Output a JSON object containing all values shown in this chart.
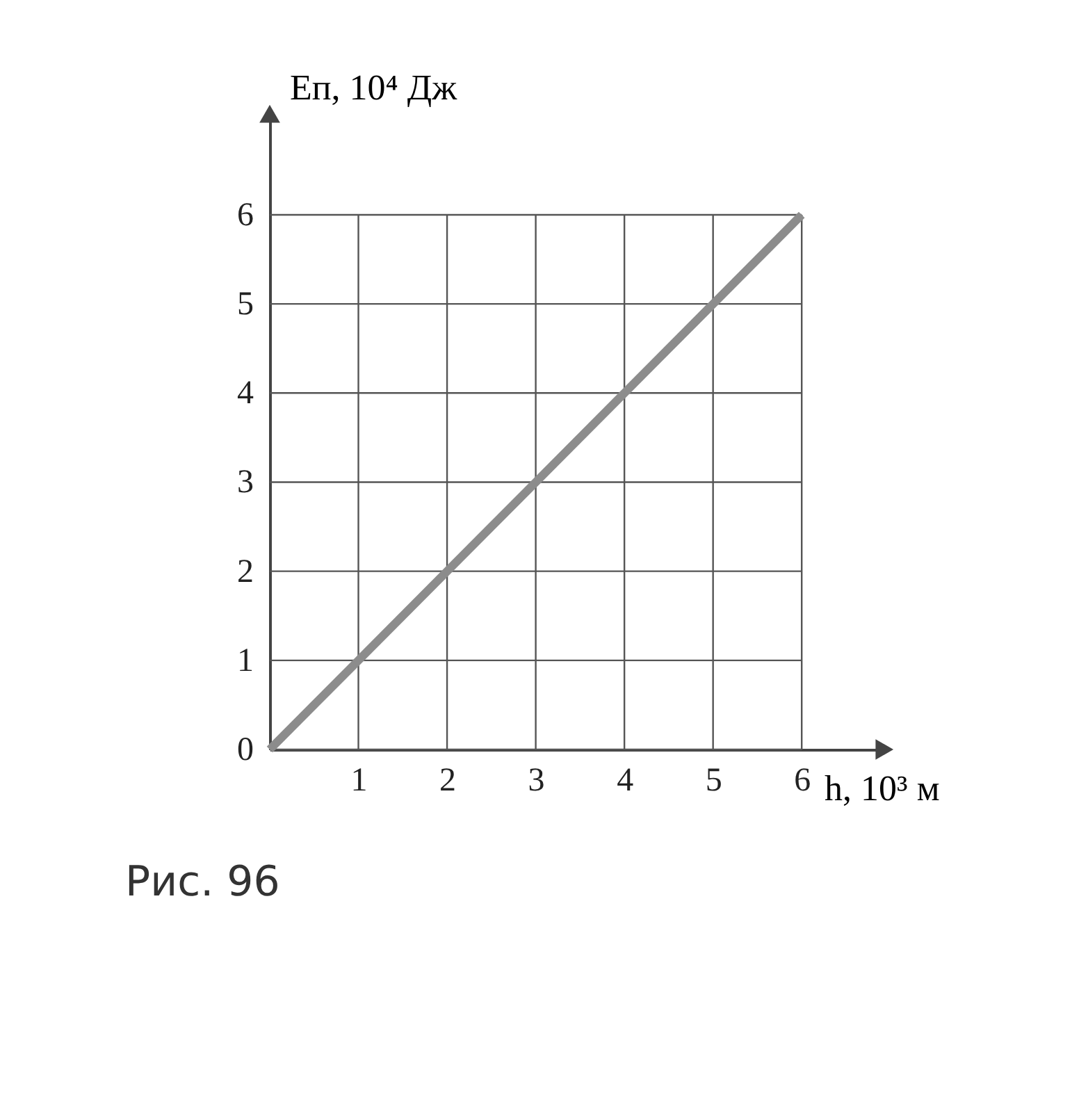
{
  "chart_data": {
    "type": "line",
    "xlabel": "h, 10³ м",
    "ylabel": "Eп, 10⁴ Дж",
    "x": [
      0,
      6
    ],
    "series": [
      {
        "color": "#8c8c8c",
        "values": [
          0,
          6
        ]
      }
    ],
    "xlim": [
      0,
      6.9
    ],
    "ylim": [
      0,
      7.1
    ],
    "xticks": [
      1,
      2,
      3,
      4,
      5,
      6
    ],
    "yticks": [
      0,
      1,
      2,
      3,
      4,
      5,
      6
    ],
    "grid": true,
    "marker": "none",
    "line_style": "solid",
    "annotations": [
      "Рис. 96"
    ]
  }
}
